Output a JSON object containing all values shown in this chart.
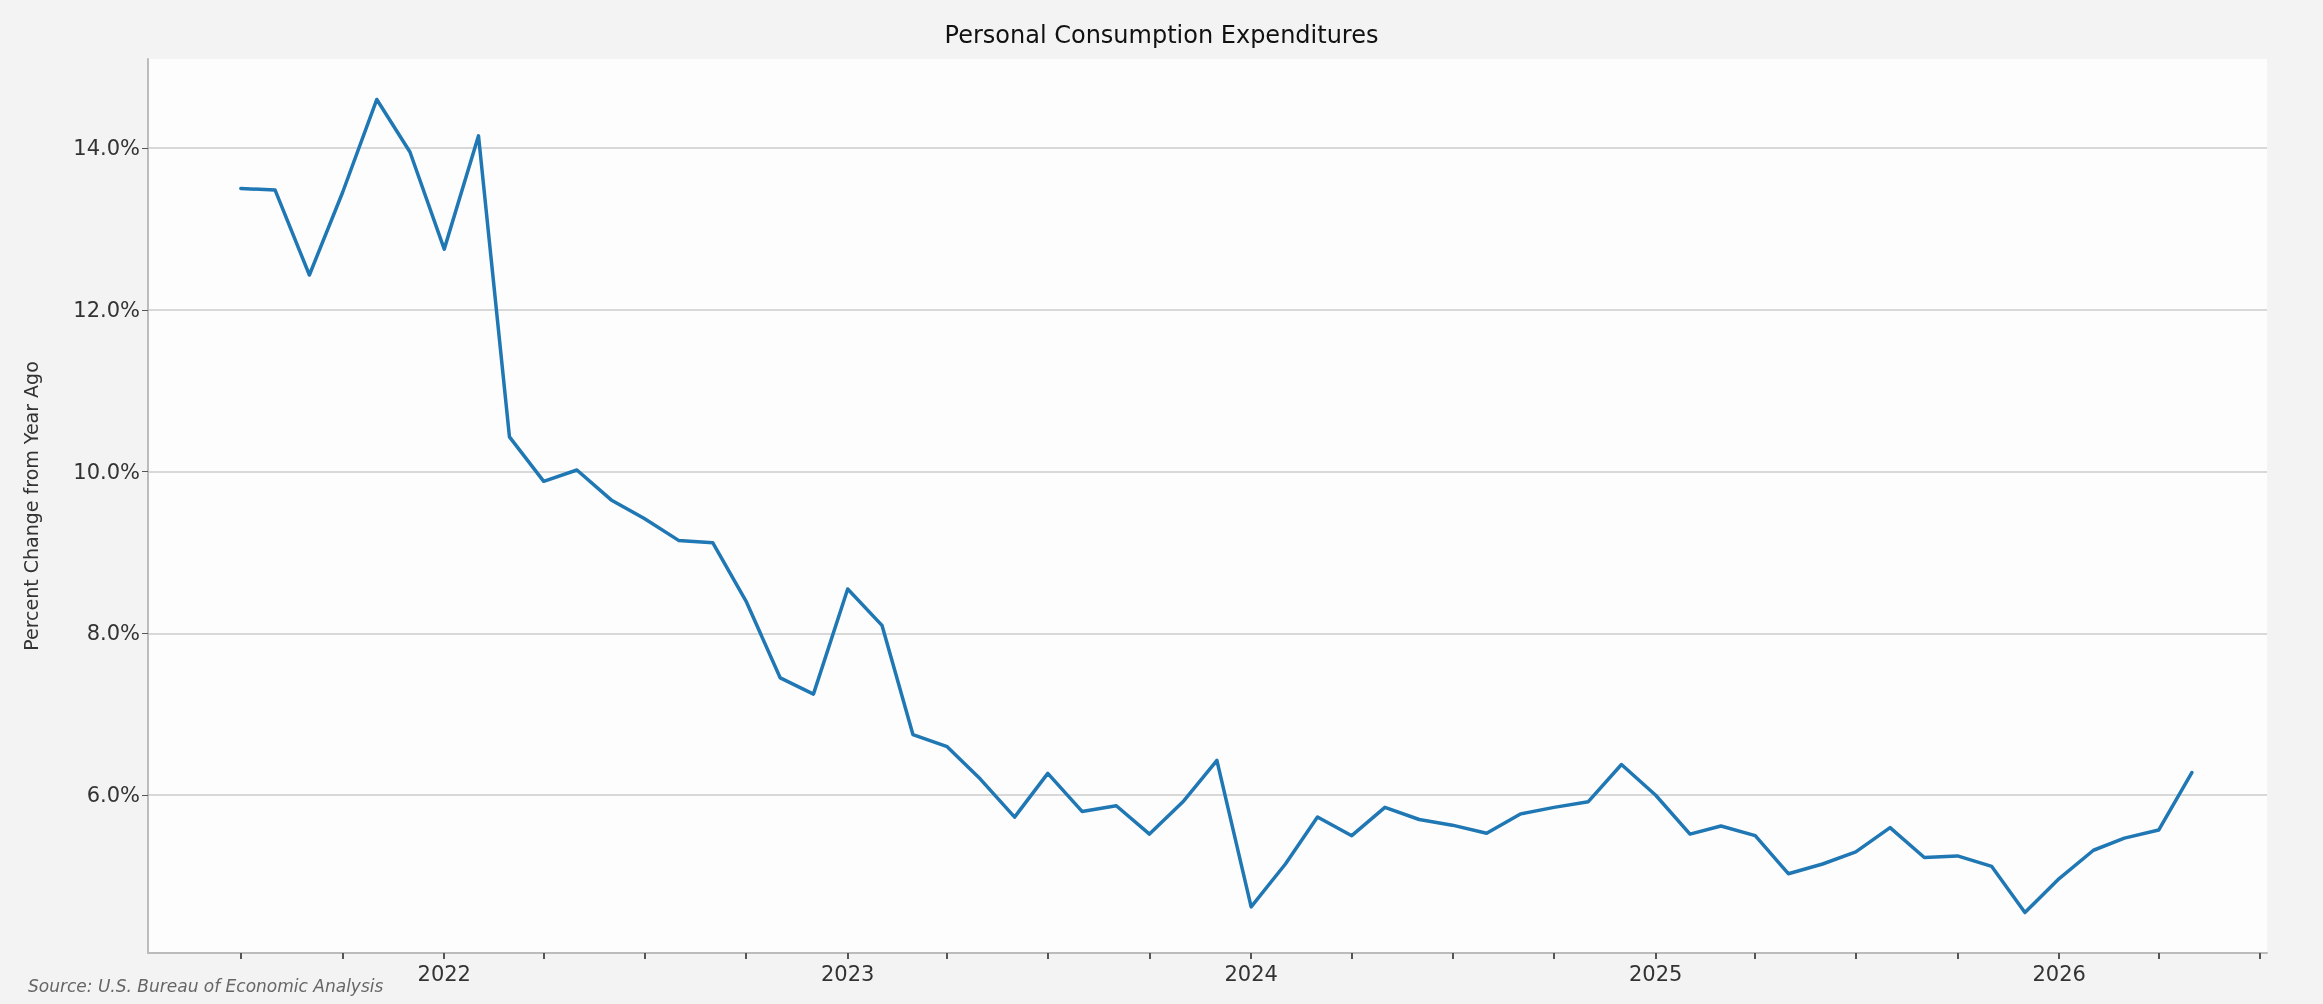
{
  "chart_data": {
    "type": "line",
    "title": "Personal Consumption Expenditures",
    "ylabel": "Percent Change from Year Ago",
    "annotations": [
      "Source: U.S. Bureau of Economic Analysis"
    ],
    "x": [
      "2021-07",
      "2021-08",
      "2021-09",
      "2021-10",
      "2021-11",
      "2021-12",
      "2022-01",
      "2022-02",
      "2022-03",
      "2022-04",
      "2022-05",
      "2022-06",
      "2022-07",
      "2022-08",
      "2022-09",
      "2022-10",
      "2022-11",
      "2022-12",
      "2023-01",
      "2023-02",
      "2023-03",
      "2023-04",
      "2023-05",
      "2023-06",
      "2023-07",
      "2023-08",
      "2023-09",
      "2023-10",
      "2023-11",
      "2023-12",
      "2024-01",
      "2024-02",
      "2024-03",
      "2024-04",
      "2024-05",
      "2024-06",
      "2024-07",
      "2024-08",
      "2024-09",
      "2024-10",
      "2024-11",
      "2024-12",
      "2025-01",
      "2025-02",
      "2025-03",
      "2025-04",
      "2025-05",
      "2025-06",
      "2025-07",
      "2025-08",
      "2025-09",
      "2025-10",
      "2025-11",
      "2025-12",
      "2026-01",
      "2026-02",
      "2026-03",
      "2026-04",
      "2026-05"
    ],
    "series": [
      {
        "color": "#1f77b4",
        "values": [
          13.5,
          13.48,
          12.43,
          13.45,
          14.6,
          13.95,
          12.75,
          14.15,
          10.43,
          9.88,
          10.02,
          9.65,
          9.42,
          9.15,
          9.12,
          8.4,
          7.45,
          7.25,
          8.55,
          8.1,
          6.75,
          6.6,
          6.2,
          5.73,
          6.27,
          5.8,
          5.87,
          5.52,
          5.93,
          6.43,
          4.62,
          5.15,
          5.73,
          5.5,
          5.85,
          5.7,
          5.63,
          5.53,
          5.77,
          5.85,
          5.92,
          6.38,
          6.0,
          5.52,
          5.62,
          5.5,
          5.03,
          5.15,
          5.3,
          5.6,
          5.23,
          5.25,
          5.12,
          4.55,
          4.97,
          5.32,
          5.47,
          5.57,
          6.28
        ]
      }
    ],
    "xlim": [
      "2021-04-08",
      "2026-07-08"
    ],
    "xticks": [
      {
        "value": "2021-07",
        "label": null
      },
      {
        "value": "2021-10",
        "label": null
      },
      "2022",
      {
        "value": "2022-04",
        "label": null
      },
      {
        "value": "2022-07",
        "label": null
      },
      {
        "value": "2022-10",
        "label": null
      },
      "2023",
      {
        "value": "2023-04",
        "label": null
      },
      {
        "value": "2023-07",
        "label": null
      },
      {
        "value": "2023-10",
        "label": null
      },
      "2024",
      {
        "value": "2024-04",
        "label": null
      },
      {
        "value": "2024-07",
        "label": null
      },
      {
        "value": "2024-10",
        "label": null
      },
      "2025",
      {
        "value": "2025-04",
        "label": null
      },
      {
        "value": "2025-07",
        "label": null
      },
      {
        "value": "2025-10",
        "label": null
      },
      "2026",
      {
        "value": "2026-04",
        "label": null
      },
      {
        "value": "2026-07",
        "label": null
      }
    ],
    "ylim": [
      4.05,
      15.1
    ],
    "yticks": [
      {
        "value": 6,
        "label": "6.0%"
      },
      {
        "value": 8,
        "label": "8.0%"
      },
      {
        "value": 10,
        "label": "10.0%"
      },
      {
        "value": 12,
        "label": "12.0%"
      },
      {
        "value": 14,
        "label": "14.0%"
      }
    ],
    "grid": "y",
    "marker": "none",
    "line_style": "solid"
  }
}
